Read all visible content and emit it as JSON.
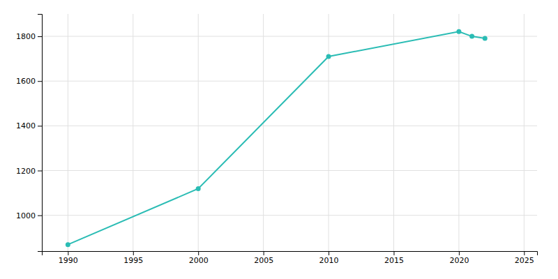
{
  "chart_data": {
    "type": "line",
    "x": [
      1990,
      2000,
      2010,
      2020,
      2021,
      2022
    ],
    "values": [
      869,
      1119,
      1710,
      1821,
      1800,
      1791
    ],
    "color": "#2abcb4",
    "marker": "circle",
    "xlim": [
      1988,
      2026
    ],
    "ylim": [
      840,
      1900
    ],
    "xticks": [
      1990,
      1995,
      2000,
      2005,
      2010,
      2015,
      2020,
      2025
    ],
    "yticks": [
      1000,
      1200,
      1400,
      1600,
      1800
    ],
    "grid": true
  }
}
